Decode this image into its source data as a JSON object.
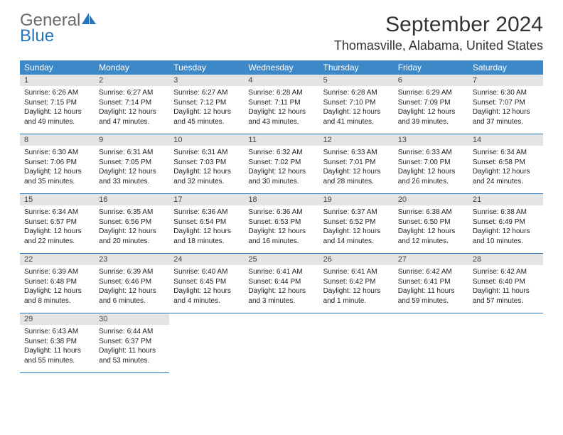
{
  "brand": {
    "text1": "General",
    "text2": "Blue"
  },
  "title": "September 2024",
  "location": "Thomasville, Alabama, United States",
  "day_headers": [
    "Sunday",
    "Monday",
    "Tuesday",
    "Wednesday",
    "Thursday",
    "Friday",
    "Saturday"
  ],
  "colors": {
    "header_bg": "#3d88c7",
    "border": "#2a74b8",
    "daynum_bg": "#e4e4e4",
    "logo_gray": "#6b6b6b",
    "logo_blue": "#2a74b8"
  },
  "days": [
    {
      "n": "1",
      "sunrise": "Sunrise: 6:26 AM",
      "sunset": "Sunset: 7:15 PM",
      "d1": "Daylight: 12 hours",
      "d2": "and 49 minutes."
    },
    {
      "n": "2",
      "sunrise": "Sunrise: 6:27 AM",
      "sunset": "Sunset: 7:14 PM",
      "d1": "Daylight: 12 hours",
      "d2": "and 47 minutes."
    },
    {
      "n": "3",
      "sunrise": "Sunrise: 6:27 AM",
      "sunset": "Sunset: 7:12 PM",
      "d1": "Daylight: 12 hours",
      "d2": "and 45 minutes."
    },
    {
      "n": "4",
      "sunrise": "Sunrise: 6:28 AM",
      "sunset": "Sunset: 7:11 PM",
      "d1": "Daylight: 12 hours",
      "d2": "and 43 minutes."
    },
    {
      "n": "5",
      "sunrise": "Sunrise: 6:28 AM",
      "sunset": "Sunset: 7:10 PM",
      "d1": "Daylight: 12 hours",
      "d2": "and 41 minutes."
    },
    {
      "n": "6",
      "sunrise": "Sunrise: 6:29 AM",
      "sunset": "Sunset: 7:09 PM",
      "d1": "Daylight: 12 hours",
      "d2": "and 39 minutes."
    },
    {
      "n": "7",
      "sunrise": "Sunrise: 6:30 AM",
      "sunset": "Sunset: 7:07 PM",
      "d1": "Daylight: 12 hours",
      "d2": "and 37 minutes."
    },
    {
      "n": "8",
      "sunrise": "Sunrise: 6:30 AM",
      "sunset": "Sunset: 7:06 PM",
      "d1": "Daylight: 12 hours",
      "d2": "and 35 minutes."
    },
    {
      "n": "9",
      "sunrise": "Sunrise: 6:31 AM",
      "sunset": "Sunset: 7:05 PM",
      "d1": "Daylight: 12 hours",
      "d2": "and 33 minutes."
    },
    {
      "n": "10",
      "sunrise": "Sunrise: 6:31 AM",
      "sunset": "Sunset: 7:03 PM",
      "d1": "Daylight: 12 hours",
      "d2": "and 32 minutes."
    },
    {
      "n": "11",
      "sunrise": "Sunrise: 6:32 AM",
      "sunset": "Sunset: 7:02 PM",
      "d1": "Daylight: 12 hours",
      "d2": "and 30 minutes."
    },
    {
      "n": "12",
      "sunrise": "Sunrise: 6:33 AM",
      "sunset": "Sunset: 7:01 PM",
      "d1": "Daylight: 12 hours",
      "d2": "and 28 minutes."
    },
    {
      "n": "13",
      "sunrise": "Sunrise: 6:33 AM",
      "sunset": "Sunset: 7:00 PM",
      "d1": "Daylight: 12 hours",
      "d2": "and 26 minutes."
    },
    {
      "n": "14",
      "sunrise": "Sunrise: 6:34 AM",
      "sunset": "Sunset: 6:58 PM",
      "d1": "Daylight: 12 hours",
      "d2": "and 24 minutes."
    },
    {
      "n": "15",
      "sunrise": "Sunrise: 6:34 AM",
      "sunset": "Sunset: 6:57 PM",
      "d1": "Daylight: 12 hours",
      "d2": "and 22 minutes."
    },
    {
      "n": "16",
      "sunrise": "Sunrise: 6:35 AM",
      "sunset": "Sunset: 6:56 PM",
      "d1": "Daylight: 12 hours",
      "d2": "and 20 minutes."
    },
    {
      "n": "17",
      "sunrise": "Sunrise: 6:36 AM",
      "sunset": "Sunset: 6:54 PM",
      "d1": "Daylight: 12 hours",
      "d2": "and 18 minutes."
    },
    {
      "n": "18",
      "sunrise": "Sunrise: 6:36 AM",
      "sunset": "Sunset: 6:53 PM",
      "d1": "Daylight: 12 hours",
      "d2": "and 16 minutes."
    },
    {
      "n": "19",
      "sunrise": "Sunrise: 6:37 AM",
      "sunset": "Sunset: 6:52 PM",
      "d1": "Daylight: 12 hours",
      "d2": "and 14 minutes."
    },
    {
      "n": "20",
      "sunrise": "Sunrise: 6:38 AM",
      "sunset": "Sunset: 6:50 PM",
      "d1": "Daylight: 12 hours",
      "d2": "and 12 minutes."
    },
    {
      "n": "21",
      "sunrise": "Sunrise: 6:38 AM",
      "sunset": "Sunset: 6:49 PM",
      "d1": "Daylight: 12 hours",
      "d2": "and 10 minutes."
    },
    {
      "n": "22",
      "sunrise": "Sunrise: 6:39 AM",
      "sunset": "Sunset: 6:48 PM",
      "d1": "Daylight: 12 hours",
      "d2": "and 8 minutes."
    },
    {
      "n": "23",
      "sunrise": "Sunrise: 6:39 AM",
      "sunset": "Sunset: 6:46 PM",
      "d1": "Daylight: 12 hours",
      "d2": "and 6 minutes."
    },
    {
      "n": "24",
      "sunrise": "Sunrise: 6:40 AM",
      "sunset": "Sunset: 6:45 PM",
      "d1": "Daylight: 12 hours",
      "d2": "and 4 minutes."
    },
    {
      "n": "25",
      "sunrise": "Sunrise: 6:41 AM",
      "sunset": "Sunset: 6:44 PM",
      "d1": "Daylight: 12 hours",
      "d2": "and 3 minutes."
    },
    {
      "n": "26",
      "sunrise": "Sunrise: 6:41 AM",
      "sunset": "Sunset: 6:42 PM",
      "d1": "Daylight: 12 hours",
      "d2": "and 1 minute."
    },
    {
      "n": "27",
      "sunrise": "Sunrise: 6:42 AM",
      "sunset": "Sunset: 6:41 PM",
      "d1": "Daylight: 11 hours",
      "d2": "and 59 minutes."
    },
    {
      "n": "28",
      "sunrise": "Sunrise: 6:42 AM",
      "sunset": "Sunset: 6:40 PM",
      "d1": "Daylight: 11 hours",
      "d2": "and 57 minutes."
    },
    {
      "n": "29",
      "sunrise": "Sunrise: 6:43 AM",
      "sunset": "Sunset: 6:38 PM",
      "d1": "Daylight: 11 hours",
      "d2": "and 55 minutes."
    },
    {
      "n": "30",
      "sunrise": "Sunrise: 6:44 AM",
      "sunset": "Sunset: 6:37 PM",
      "d1": "Daylight: 11 hours",
      "d2": "and 53 minutes."
    }
  ]
}
